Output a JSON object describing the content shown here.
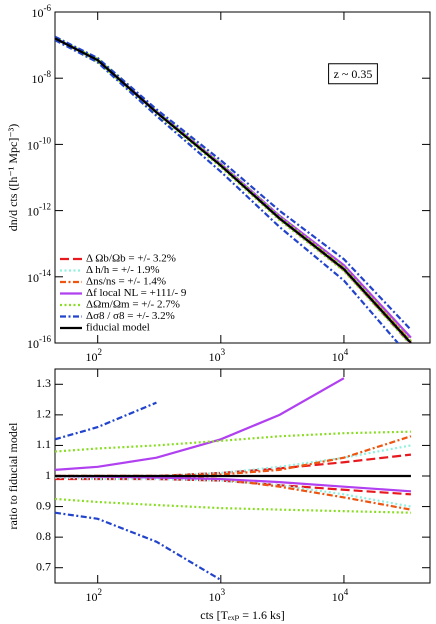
{
  "chart_data": [
    {
      "type": "line",
      "ylabel": "dn/d cts ([h⁻¹ Mpc]⁻³)",
      "annotation": "z ~ 0.35",
      "xlog": true,
      "ylog": true,
      "legend": "lower left",
      "xlim": [
        45,
        50000
      ],
      "ylim": [
        1e-16,
        1e-06
      ],
      "xticks": [
        {
          "value": 100,
          "label": "102"
        },
        {
          "value": 1000,
          "label": "103"
        },
        {
          "value": 10000,
          "label": "104"
        }
      ],
      "yticks": [
        {
          "value": 1e-06,
          "label": "10-6"
        },
        {
          "value": 1e-08,
          "label": "10-8"
        },
        {
          "value": 1e-10,
          "label": "10-10"
        },
        {
          "value": 1e-12,
          "label": "10-12"
        },
        {
          "value": 1e-14,
          "label": "10-14"
        },
        {
          "value": 1e-16,
          "label": "10-16"
        }
      ],
      "x": [
        45,
        100,
        300,
        1000,
        3000,
        10000,
        35000
      ],
      "series": [
        {
          "name": "Δ Ωb/Ωb = +/- 3.2%",
          "color": "#e8191e",
          "dash": "dashed",
          "values": [
            1.6e-07,
            3.5e-08,
            9.3e-10,
            2.32e-11,
            5.95e-13,
            1.78e-14,
            1.07e-16
          ],
          "values_low": [
            1.58e-07,
            3.47e-08,
            9.2e-10,
            2.27e-11,
            5.63e-13,
            1.62e-14,
            9.4e-17
          ]
        },
        {
          "name": "Δ h/h     = +/- 1.9%",
          "color": "#8ff0e0",
          "dash": "dotted",
          "values": [
            1.6e-07,
            3.5e-08,
            9.3e-10,
            2.32e-11,
            5.97e-13,
            1.8e-14,
            1.1e-16
          ],
          "values_low": [
            1.59e-07,
            3.47e-08,
            9.2e-10,
            2.27e-11,
            5.63e-13,
            1.6e-14,
            9e-17
          ]
        },
        {
          "name": "Δns/ns    = +/- 1.4%",
          "color": "#ee5511",
          "dash": "dashdot",
          "values": [
            1.6e-07,
            3.5e-08,
            9.3e-10,
            2.31e-11,
            5.92e-13,
            1.8e-14,
            1.13e-16
          ],
          "values_low": [
            1.6e-07,
            3.5e-08,
            9.3e-10,
            2.28e-11,
            5.6e-13,
            1.58e-14,
            8.9e-17
          ]
        },
        {
          "name": "Δf local NL  = +111/- 9",
          "color": "#b040f0",
          "dash": "solid",
          "values": [
            1.63e-07,
            3.6e-08,
            9.86e-10,
            2.58e-11,
            6.96e-13,
            2.24e-14,
            1.45e-16
          ],
          "values_low": [
            1.6e-07,
            3.49e-08,
            9.25e-10,
            2.28e-11,
            5.68e-13,
            1.64e-14,
            9.5e-17
          ]
        },
        {
          "name": "ΔΩm/Ωm  = +/- 2.7%",
          "color": "#88dd22",
          "dash": "dotted",
          "values": [
            1.73e-07,
            3.82e-08,
            1.02e-09,
            2.56e-11,
            6.55e-13,
            1.94e-14,
            1.15e-16
          ],
          "values_low": [
            1.48e-07,
            3.2e-08,
            8.42e-10,
            2.06e-11,
            5.16e-13,
            1.5e-14,
            8.8e-17
          ]
        },
        {
          "name": "Δσ8 / σ8 = +/- 3.2%",
          "color": "#2244cc",
          "dash": "dashdot",
          "values": [
            1.79e-07,
            4.06e-08,
            1.15e-09,
            3.3e-11,
            9.9e-13,
            3.4e-14,
            2.5e-16
          ],
          "values_low": [
            1.41e-07,
            3e-08,
            7.3e-10,
            1.5e-11,
            3.2e-13,
            7.7e-15,
            3.5e-17
          ]
        },
        {
          "name": "fiducial model",
          "color": "#000000",
          "dash": "solid",
          "values": [
            1.6e-07,
            3.5e-08,
            9.3e-10,
            2.3e-11,
            5.8e-13,
            1.7e-14,
            1e-16
          ]
        }
      ]
    },
    {
      "type": "line",
      "xlabel": "cts [Tₑₓₚ = 1.6 ks]",
      "ylabel": "ratio to fiducial model",
      "xlog": true,
      "ylog": false,
      "xlim": [
        45,
        50000
      ],
      "ylim": [
        0.65,
        1.35
      ],
      "xticks": [
        {
          "value": 100,
          "label": "102"
        },
        {
          "value": 1000,
          "label": "103"
        },
        {
          "value": 10000,
          "label": "104"
        }
      ],
      "yticks": [
        0.7,
        0.8,
        0.9,
        1,
        1.1,
        1.2,
        1.3
      ],
      "x": [
        45,
        100,
        300,
        1000,
        3000,
        10000,
        35000
      ],
      "series": [
        {
          "color": "#e8191e",
          "dash": "dashed",
          "values": [
            1,
            1,
            1,
            1.01,
            1.025,
            1.045,
            1.07
          ],
          "values_low": [
            0.99,
            0.99,
            0.99,
            0.985,
            0.97,
            0.955,
            0.94
          ]
        },
        {
          "color": "#8ff0e0",
          "dash": "dotted",
          "values": [
            1,
            1,
            1,
            1.01,
            1.03,
            1.06,
            1.1
          ],
          "values_low": [
            0.995,
            0.99,
            0.99,
            0.985,
            0.97,
            0.94,
            0.9
          ]
        },
        {
          "color": "#ee5511",
          "dash": "dashdot",
          "values": [
            1,
            1,
            1,
            1.005,
            1.02,
            1.06,
            1.13
          ],
          "values_low": [
            1,
            1,
            1,
            0.99,
            0.965,
            0.93,
            0.89
          ]
        },
        {
          "color": "#b040f0",
          "dash": "solid",
          "values": [
            1.02,
            1.03,
            1.06,
            1.12,
            1.2,
            1.32,
            null
          ],
          "values_low": [
            1,
            0.998,
            0.995,
            0.99,
            0.98,
            0.965,
            0.95
          ]
        },
        {
          "color": "#88dd22",
          "dash": "dotted",
          "values": [
            1.08,
            1.09,
            1.1,
            1.115,
            1.13,
            1.14,
            1.145
          ],
          "values_low": [
            0.925,
            0.915,
            0.905,
            0.895,
            0.89,
            0.885,
            0.88
          ]
        },
        {
          "color": "#2244cc",
          "dash": "dashdot",
          "values": [
            1.12,
            1.16,
            1.24,
            null,
            null,
            null,
            null
          ],
          "values_low": [
            0.88,
            0.86,
            0.785,
            0.66,
            null,
            null,
            null
          ]
        },
        {
          "color": "#000000",
          "dash": "solid",
          "values": [
            1,
            1,
            1,
            1,
            1,
            1,
            1
          ]
        }
      ]
    }
  ]
}
